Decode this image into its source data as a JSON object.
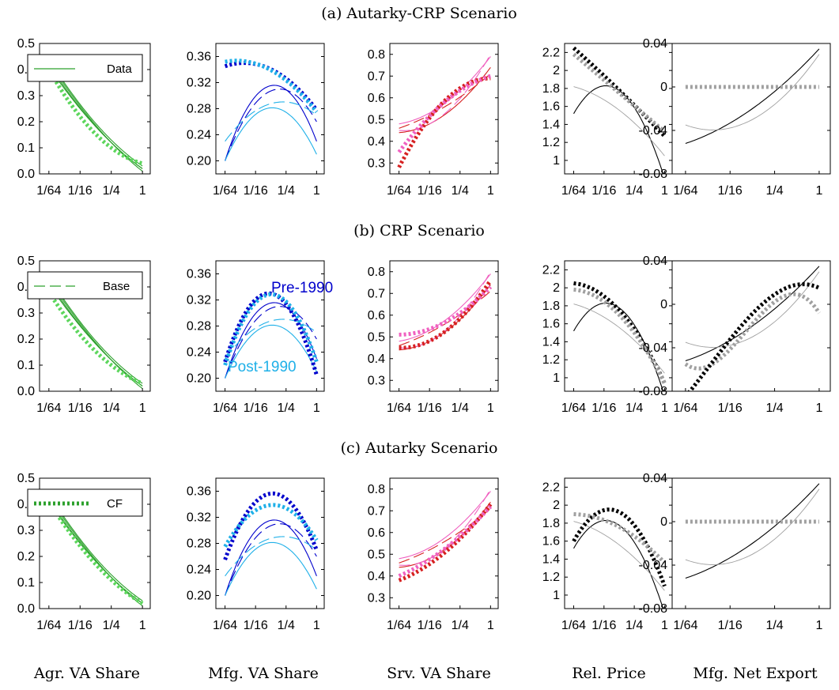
{
  "figure": {
    "row_titles": [
      "(a) Autarky-CRP Scenario",
      "(b) CRP Scenario",
      "(c) Autarky Scenario"
    ],
    "column_titles": [
      "Agr. VA Share",
      "Mfg. VA Share",
      "Srv. VA Share",
      "Rel. Price",
      "Mfg. Net Export"
    ]
  },
  "legend": {
    "data": "Data",
    "base": "Base",
    "cf": "CF"
  },
  "annotations": {
    "pre": "Pre-1990",
    "post": "Post-1990"
  },
  "colors": {
    "agr": "#2ca02c",
    "agr_cf": "#5cd65c",
    "mfg_pre": "#0000cc",
    "mfg_post": "#1fb0e8",
    "srv_pre": "#d62020",
    "srv_post": "#f060c0",
    "price_pre": "#000000",
    "price_post": "#a0a0a0"
  },
  "chart_data": [
    {
      "type": "line",
      "name": "Agr. VA Share",
      "x_log2_ticks": [
        -6,
        -4,
        -2,
        0
      ],
      "xtick_labels": [
        "1/64",
        "1/16",
        "1/4",
        "1"
      ],
      "yticks": [
        0,
        0.1,
        0.2,
        0.3,
        0.4,
        0.5
      ],
      "ytick_labels": [
        "0.0",
        "0.1",
        "0.2",
        "0.3",
        "0.4",
        "0.5"
      ],
      "ylim": [
        0,
        0.5
      ],
      "base_curves": [
        [
          -6,
          0.43,
          -2,
          0.12,
          0,
          0.01
        ],
        [
          -6,
          0.44,
          -2,
          0.13,
          0,
          0.03
        ],
        [
          -6,
          0.42,
          -2,
          0.12,
          0,
          0.02
        ],
        [
          -6,
          0.41,
          -2,
          0.12,
          0,
          0.02
        ]
      ],
      "cf": [
        [
          -6,
          0.4,
          -2,
          0.1,
          0,
          0.04
        ],
        [
          -6,
          0.38,
          -2,
          0.1,
          0,
          0.03
        ],
        [
          -6,
          0.41,
          -2,
          0.11,
          0,
          0.02
        ]
      ]
    },
    {
      "type": "line",
      "name": "Mfg. VA Share",
      "yticks": [
        0.2,
        0.24,
        0.28,
        0.32,
        0.36
      ],
      "ytick_labels": [
        "0.20",
        "0.24",
        "0.28",
        "0.32",
        "0.36"
      ],
      "ylim": [
        0.18,
        0.38
      ],
      "base_curves": [
        [
          -6,
          0.2,
          -2.5,
          0.315,
          0,
          0.23
        ],
        [
          -6,
          0.2,
          -2.5,
          0.31,
          0,
          0.26
        ],
        [
          -6,
          0.2,
          -2.5,
          0.28,
          0,
          0.21
        ],
        [
          -6,
          0.23,
          -2.5,
          0.29,
          0,
          0.27
        ]
      ],
      "cf": [
        [
          [
            -6,
            0.345,
            -4.5,
            0.35,
            0,
            0.278
          ],
          [
            -6,
            0.352,
            -4.5,
            0.352,
            0,
            0.275
          ]
        ],
        [
          [
            -6,
            0.225,
            -2.5,
            0.325,
            0,
            0.205
          ],
          [
            -6,
            0.22,
            -2.5,
            0.326,
            0,
            0.225
          ]
        ],
        [
          [
            -6,
            0.255,
            -2.5,
            0.355,
            0,
            0.27
          ],
          [
            -6,
            0.275,
            -2.5,
            0.338,
            0,
            0.285
          ]
        ]
      ]
    },
    {
      "type": "line",
      "name": "Srv. VA Share",
      "yticks": [
        0.3,
        0.4,
        0.5,
        0.6,
        0.7,
        0.8
      ],
      "ytick_labels": [
        "0.3",
        "0.4",
        "0.5",
        "0.6",
        "0.7",
        "0.8"
      ],
      "ylim": [
        0.25,
        0.85
      ],
      "base_curves": [
        [
          -6,
          0.44,
          -4,
          0.48,
          0,
          0.74
        ],
        [
          -6,
          0.45,
          -4,
          0.48,
          0,
          0.8
        ],
        [
          -6,
          0.48,
          -4,
          0.53,
          0,
          0.79
        ],
        [
          -6,
          0.46,
          -4,
          0.52,
          0,
          0.71
        ]
      ],
      "cf": [
        [
          [
            -6,
            0.28,
            -3.5,
            0.55,
            0,
            0.69
          ],
          [
            -6,
            0.35,
            -3.5,
            0.55,
            0,
            0.7
          ]
        ],
        [
          [
            -6,
            0.45,
            -3.5,
            0.5,
            0,
            0.76
          ],
          [
            -6,
            0.51,
            -3.5,
            0.55,
            0,
            0.73
          ]
        ],
        [
          [
            -6,
            0.38,
            -3.5,
            0.48,
            0,
            0.73
          ],
          [
            -6,
            0.4,
            -3.5,
            0.5,
            0,
            0.72
          ]
        ]
      ]
    },
    {
      "type": "line",
      "name": "Rel. Price",
      "yticks": [
        1.0,
        1.2,
        1.4,
        1.6,
        1.8,
        2.0,
        2.2
      ],
      "ytick_labels": [
        "1",
        "1.2",
        "1.4",
        "1.6",
        "1.8",
        "2",
        "2.2"
      ],
      "ylim": [
        0.85,
        2.3
      ],
      "base_curves": [
        [
          -6,
          1.52,
          -3.5,
          1.82,
          0,
          0.8
        ],
        [
          -6,
          1.82,
          -3.5,
          1.62,
          0,
          1.05
        ]
      ],
      "cf": [
        [
          [
            -6,
            2.25,
            -3,
            1.78,
            0,
            1.27
          ],
          [
            -6,
            2.18,
            -3,
            1.75,
            0,
            1.32
          ]
        ],
        [
          [
            -6,
            2.05,
            -3,
            1.75,
            0,
            0.94
          ],
          [
            -6,
            1.98,
            -3,
            1.7,
            0,
            0.94
          ]
        ],
        [
          [
            -6,
            1.6,
            -3.5,
            1.95,
            0,
            1.1
          ],
          [
            -6,
            1.9,
            -3.5,
            1.8,
            0,
            1.36
          ]
        ]
      ]
    },
    {
      "type": "line",
      "name": "Mfg. Net Export",
      "yticks": [
        -0.08,
        -0.04,
        0,
        0.04
      ],
      "ytick_labels": [
        "-0.08",
        "-0.04",
        "0",
        "0.04"
      ],
      "ylim": [
        -0.08,
        0.04
      ],
      "base_curves": [
        [
          -6,
          -0.052,
          -3,
          -0.02,
          0,
          0.035
        ],
        [
          -6,
          -0.035,
          -3,
          -0.03,
          0,
          0.03
        ]
      ],
      "cf": [
        [
          [
            -6,
            0,
            0,
            0
          ]
        ],
        [
          [
            -6,
            -0.055,
            -3.5,
            -0.03,
            -1.5,
            0.008,
            0,
            -0.008
          ],
          [
            -6,
            -0.085,
            -3.5,
            -0.02,
            -1,
            0.018,
            0,
            0.015
          ]
        ],
        [
          [
            -6,
            0,
            0,
            0
          ]
        ]
      ]
    }
  ]
}
